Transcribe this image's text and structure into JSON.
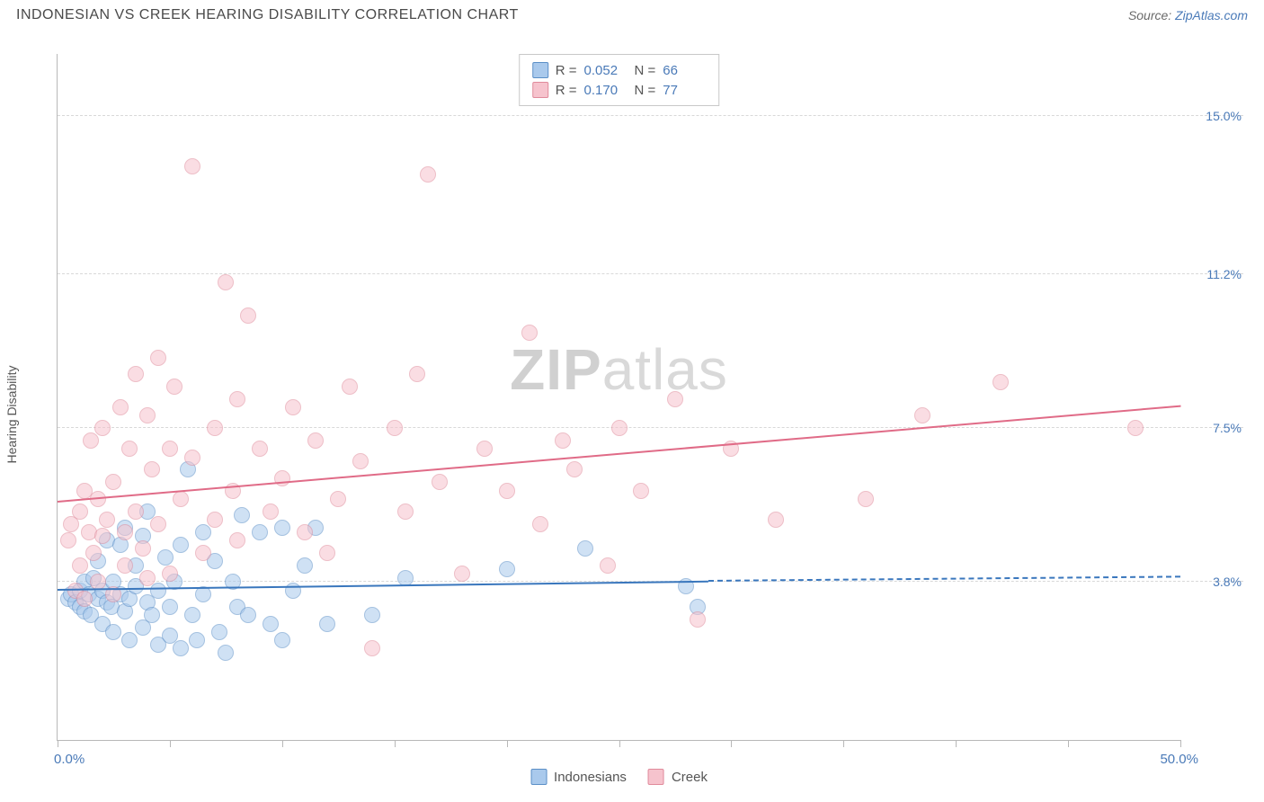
{
  "title": "INDONESIAN VS CREEK HEARING DISABILITY CORRELATION CHART",
  "source_prefix": "Source: ",
  "source_name": "ZipAtlas.com",
  "ylabel": "Hearing Disability",
  "watermark_bold": "ZIP",
  "watermark_rest": "atlas",
  "chart": {
    "type": "scatter",
    "xlim": [
      0,
      50
    ],
    "ylim": [
      0,
      16.5
    ],
    "x_min_label": "0.0%",
    "x_max_label": "50.0%",
    "xtick_positions": [
      0,
      5,
      10,
      15,
      20,
      25,
      30,
      35,
      40,
      45,
      50
    ],
    "y_gridlines": [
      {
        "value": 3.8,
        "label": "3.8%"
      },
      {
        "value": 7.5,
        "label": "7.5%"
      },
      {
        "value": 11.2,
        "label": "11.2%"
      },
      {
        "value": 15.0,
        "label": "15.0%"
      }
    ],
    "background_color": "#ffffff",
    "grid_color": "#d8d8d8",
    "axis_color": "#b8b8b8",
    "marker_radius": 9,
    "marker_opacity": 0.55,
    "series": [
      {
        "name": "Indonesians",
        "color_fill": "#a9c9ec",
        "color_stroke": "#5b8fc7",
        "R": "0.052",
        "N": "66",
        "trend": {
          "x0": 0,
          "y0": 3.6,
          "x1": 29,
          "y1": 3.8,
          "dash_x1": 50,
          "dash_y1": 3.9,
          "color": "#3a77bd",
          "width": 2
        },
        "points": [
          [
            0.5,
            3.4
          ],
          [
            0.6,
            3.5
          ],
          [
            0.8,
            3.3
          ],
          [
            1.0,
            3.6
          ],
          [
            1.0,
            3.2
          ],
          [
            1.2,
            3.8
          ],
          [
            1.2,
            3.1
          ],
          [
            1.4,
            3.5
          ],
          [
            1.5,
            3.0
          ],
          [
            1.6,
            3.9
          ],
          [
            1.8,
            3.4
          ],
          [
            1.8,
            4.3
          ],
          [
            2.0,
            3.6
          ],
          [
            2.0,
            2.8
          ],
          [
            2.2,
            3.3
          ],
          [
            2.2,
            4.8
          ],
          [
            2.4,
            3.2
          ],
          [
            2.5,
            3.8
          ],
          [
            2.5,
            2.6
          ],
          [
            2.8,
            3.5
          ],
          [
            2.8,
            4.7
          ],
          [
            3.0,
            3.1
          ],
          [
            3.0,
            5.1
          ],
          [
            3.2,
            3.4
          ],
          [
            3.2,
            2.4
          ],
          [
            3.5,
            3.7
          ],
          [
            3.5,
            4.2
          ],
          [
            3.8,
            4.9
          ],
          [
            3.8,
            2.7
          ],
          [
            4.0,
            3.3
          ],
          [
            4.0,
            5.5
          ],
          [
            4.2,
            3.0
          ],
          [
            4.5,
            3.6
          ],
          [
            4.5,
            2.3
          ],
          [
            4.8,
            4.4
          ],
          [
            5.0,
            3.2
          ],
          [
            5.0,
            2.5
          ],
          [
            5.2,
            3.8
          ],
          [
            5.5,
            4.7
          ],
          [
            5.5,
            2.2
          ],
          [
            5.8,
            6.5
          ],
          [
            6.0,
            3.0
          ],
          [
            6.2,
            2.4
          ],
          [
            6.5,
            3.5
          ],
          [
            6.5,
            5.0
          ],
          [
            7.0,
            4.3
          ],
          [
            7.2,
            2.6
          ],
          [
            7.5,
            2.1
          ],
          [
            7.8,
            3.8
          ],
          [
            8.0,
            3.2
          ],
          [
            8.2,
            5.4
          ],
          [
            8.5,
            3.0
          ],
          [
            9.0,
            5.0
          ],
          [
            9.5,
            2.8
          ],
          [
            10.0,
            5.1
          ],
          [
            10.0,
            2.4
          ],
          [
            10.5,
            3.6
          ],
          [
            11.0,
            4.2
          ],
          [
            11.5,
            5.1
          ],
          [
            12.0,
            2.8
          ],
          [
            14.0,
            3.0
          ],
          [
            15.5,
            3.9
          ],
          [
            20.0,
            4.1
          ],
          [
            23.5,
            4.6
          ],
          [
            28.0,
            3.7
          ],
          [
            28.5,
            3.2
          ]
        ]
      },
      {
        "name": "Creek",
        "color_fill": "#f6c3cd",
        "color_stroke": "#e08a9b",
        "R": "0.170",
        "N": "77",
        "trend": {
          "x0": 0,
          "y0": 5.7,
          "x1": 50,
          "y1": 8.0,
          "color": "#e06b87",
          "width": 2
        },
        "points": [
          [
            0.5,
            4.8
          ],
          [
            0.6,
            5.2
          ],
          [
            0.8,
            3.6
          ],
          [
            1.0,
            5.5
          ],
          [
            1.0,
            4.2
          ],
          [
            1.2,
            6.0
          ],
          [
            1.2,
            3.4
          ],
          [
            1.4,
            5.0
          ],
          [
            1.5,
            7.2
          ],
          [
            1.6,
            4.5
          ],
          [
            1.8,
            5.8
          ],
          [
            1.8,
            3.8
          ],
          [
            2.0,
            7.5
          ],
          [
            2.0,
            4.9
          ],
          [
            2.2,
            5.3
          ],
          [
            2.5,
            6.2
          ],
          [
            2.5,
            3.5
          ],
          [
            2.8,
            8.0
          ],
          [
            3.0,
            5.0
          ],
          [
            3.0,
            4.2
          ],
          [
            3.2,
            7.0
          ],
          [
            3.5,
            5.5
          ],
          [
            3.5,
            8.8
          ],
          [
            3.8,
            4.6
          ],
          [
            4.0,
            7.8
          ],
          [
            4.0,
            3.9
          ],
          [
            4.2,
            6.5
          ],
          [
            4.5,
            5.2
          ],
          [
            4.5,
            9.2
          ],
          [
            5.0,
            7.0
          ],
          [
            5.0,
            4.0
          ],
          [
            5.2,
            8.5
          ],
          [
            5.5,
            5.8
          ],
          [
            6.0,
            13.8
          ],
          [
            6.0,
            6.8
          ],
          [
            6.5,
            4.5
          ],
          [
            7.0,
            7.5
          ],
          [
            7.0,
            5.3
          ],
          [
            7.5,
            11.0
          ],
          [
            7.8,
            6.0
          ],
          [
            8.0,
            8.2
          ],
          [
            8.0,
            4.8
          ],
          [
            8.5,
            10.2
          ],
          [
            9.0,
            7.0
          ],
          [
            9.5,
            5.5
          ],
          [
            10.0,
            6.3
          ],
          [
            10.5,
            8.0
          ],
          [
            11.0,
            5.0
          ],
          [
            11.5,
            7.2
          ],
          [
            12.0,
            4.5
          ],
          [
            12.5,
            5.8
          ],
          [
            13.0,
            8.5
          ],
          [
            13.5,
            6.7
          ],
          [
            14.0,
            2.2
          ],
          [
            15.0,
            7.5
          ],
          [
            15.5,
            5.5
          ],
          [
            16.0,
            8.8
          ],
          [
            16.5,
            13.6
          ],
          [
            17.0,
            6.2
          ],
          [
            18.0,
            4.0
          ],
          [
            19.0,
            7.0
          ],
          [
            20.0,
            6.0
          ],
          [
            21.0,
            9.8
          ],
          [
            21.5,
            5.2
          ],
          [
            22.5,
            7.2
          ],
          [
            23.0,
            6.5
          ],
          [
            24.5,
            4.2
          ],
          [
            25.0,
            7.5
          ],
          [
            26.0,
            6.0
          ],
          [
            27.5,
            8.2
          ],
          [
            28.5,
            2.9
          ],
          [
            30.0,
            7.0
          ],
          [
            32.0,
            5.3
          ],
          [
            36.0,
            5.8
          ],
          [
            38.5,
            7.8
          ],
          [
            42.0,
            8.6
          ],
          [
            48.0,
            7.5
          ]
        ]
      }
    ]
  },
  "legend_stats": {
    "R_label": "R =",
    "N_label": "N ="
  }
}
